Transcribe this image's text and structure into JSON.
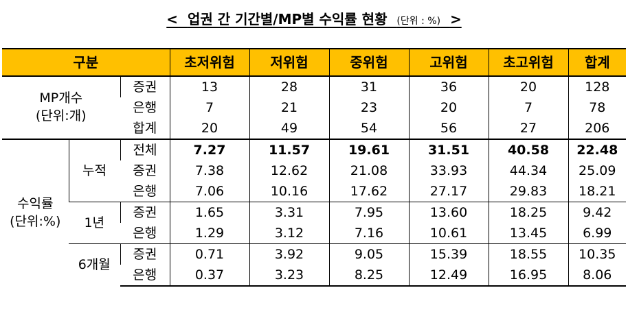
{
  "title": {
    "lt": "<",
    "text": "업권 간 기간별/MP별 수익률 현황",
    "unit": "(단위 : %)",
    "gt": ">"
  },
  "header": {
    "category": "구분",
    "columns": [
      "초저위험",
      "저위험",
      "중위험",
      "고위험",
      "초고위험",
      "합계"
    ]
  },
  "mp_count": {
    "label_line1": "MP개수",
    "label_line2": "(단위:개)",
    "rows": [
      {
        "label": "증권",
        "values": [
          "13",
          "28",
          "31",
          "36",
          "20",
          "128"
        ]
      },
      {
        "label": "은행",
        "values": [
          "7",
          "21",
          "23",
          "20",
          "7",
          "78"
        ]
      },
      {
        "label": "합계",
        "values": [
          "20",
          "49",
          "54",
          "56",
          "27",
          "206"
        ]
      }
    ]
  },
  "returns": {
    "label_line1": "수익률",
    "label_line2": "(단위:%)",
    "periods": [
      {
        "label": "누적",
        "rows": [
          {
            "label": "전체",
            "values": [
              "7.27",
              "11.57",
              "19.61",
              "31.51",
              "40.58",
              "22.48"
            ]
          },
          {
            "label": "증권",
            "values": [
              "7.38",
              "12.62",
              "21.08",
              "33.93",
              "44.34",
              "25.09"
            ]
          },
          {
            "label": "은행",
            "values": [
              "7.06",
              "10.16",
              "17.62",
              "27.17",
              "29.83",
              "18.21"
            ]
          }
        ]
      },
      {
        "label": "1년",
        "rows": [
          {
            "label": "증권",
            "values": [
              "1.65",
              "3.31",
              "7.95",
              "13.60",
              "18.25",
              "9.42"
            ]
          },
          {
            "label": "은행",
            "values": [
              "1.29",
              "3.12",
              "7.16",
              "10.61",
              "13.45",
              "6.99"
            ]
          }
        ]
      },
      {
        "label": "6개월",
        "rows": [
          {
            "label": "증권",
            "values": [
              "0.71",
              "3.92",
              "9.05",
              "15.39",
              "18.55",
              "10.35"
            ]
          },
          {
            "label": "은행",
            "values": [
              "0.37",
              "3.23",
              "8.25",
              "12.49",
              "16.95",
              "8.06"
            ]
          }
        ]
      }
    ]
  }
}
